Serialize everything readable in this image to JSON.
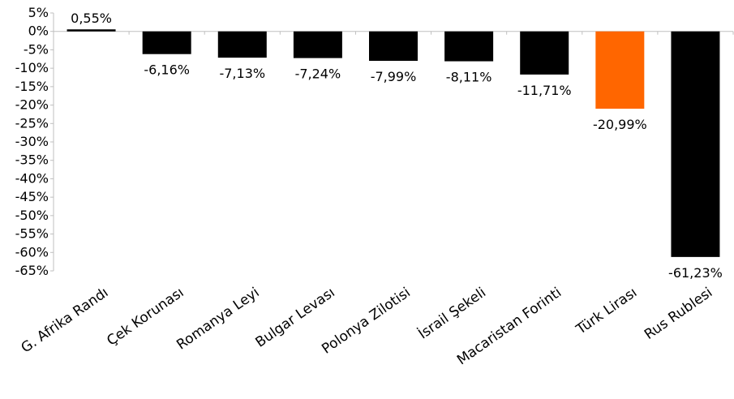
{
  "chart_data": {
    "type": "bar",
    "title": "",
    "xlabel": "",
    "ylabel": "",
    "categories": [
      "G. Afrika Randı",
      "Çek Korunası",
      "Romanya Leyi",
      "Bulgar Levası",
      "Polonya Zilotisi",
      "İsrail Şekeli",
      "Macaristan Forinti",
      "Türk Lirası",
      "Rus Rublesi"
    ],
    "values": [
      0.55,
      -6.16,
      -7.13,
      -7.24,
      -7.99,
      -8.11,
      -11.71,
      -20.99,
      -61.23
    ],
    "value_labels": [
      "0,55%",
      "-6,16%",
      "-7,13%",
      "-7,24%",
      "-7,99%",
      "-8,11%",
      "-11,71%",
      "-20,99%",
      "-61,23%"
    ],
    "ylim": [
      -65,
      5
    ],
    "yticks": [
      5,
      0,
      -5,
      -10,
      -15,
      -20,
      -25,
      -30,
      -35,
      -40,
      -45,
      -50,
      -55,
      -60,
      -65
    ],
    "ytick_labels": [
      "5%",
      "0%",
      "-5%",
      "-10%",
      "-15%",
      "-20%",
      "-25%",
      "-30%",
      "-35%",
      "-40%",
      "-45%",
      "-50%",
      "-55%",
      "-60%",
      "-65%"
    ],
    "grid": false,
    "legend": "none",
    "colors": {
      "default_bar": "#000000",
      "highlight_bar": "#ff6600",
      "axis": "#bfbfbf"
    },
    "highlight_index": 7
  }
}
